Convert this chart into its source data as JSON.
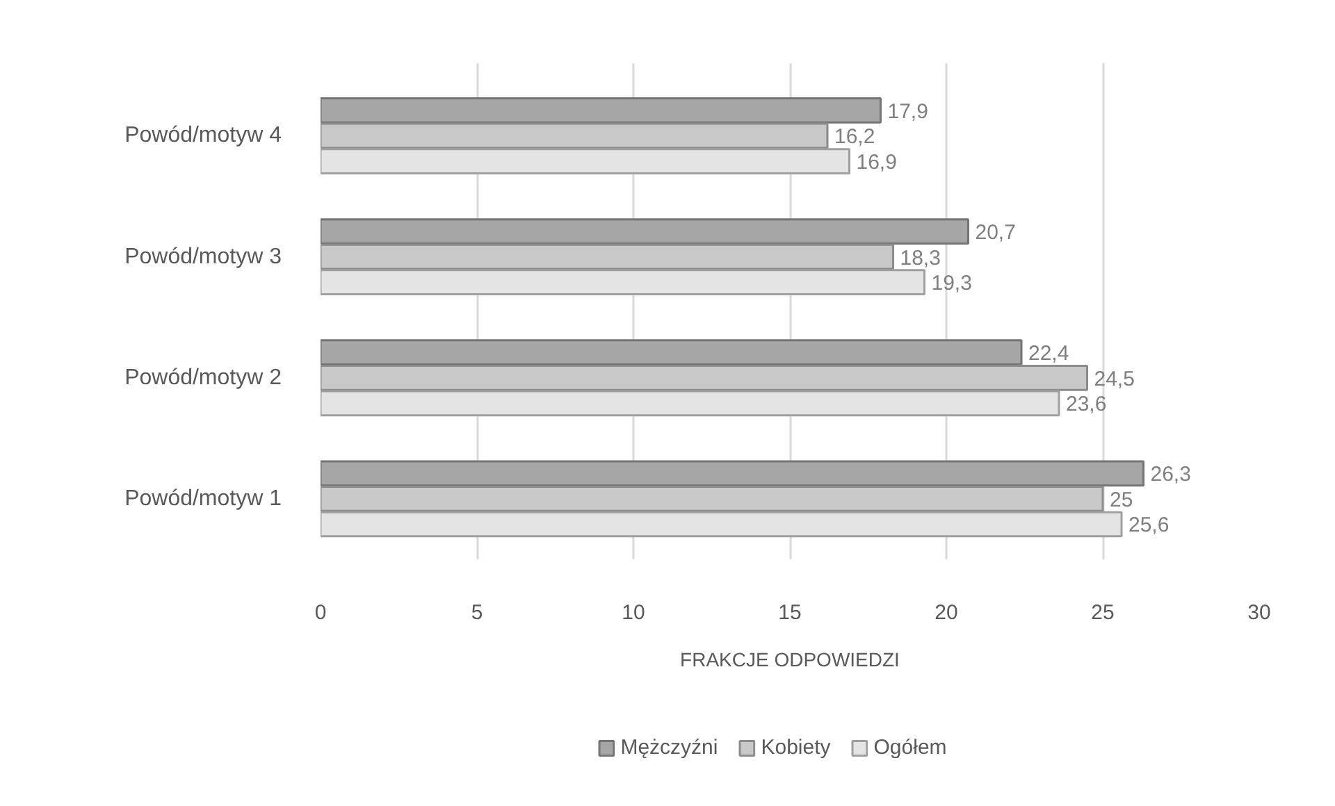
{
  "chart_data": {
    "type": "bar",
    "orientation": "horizontal",
    "categories": [
      "Powód/motyw 4",
      "Powód/motyw 3",
      "Powód/motyw 2",
      "Powód/motyw 1"
    ],
    "series": [
      {
        "name": "Mężczyźni",
        "color": "#a6a6a6",
        "values": [
          17.9,
          20.7,
          22.4,
          26.3
        ],
        "value_labels": [
          "17,9",
          "20,7",
          "22,4",
          "26,3"
        ]
      },
      {
        "name": "Kobiety",
        "color": "#c8c8c8",
        "values": [
          16.2,
          18.3,
          24.5,
          25
        ],
        "value_labels": [
          "16,2",
          "18,3",
          "24,5",
          "25"
        ]
      },
      {
        "name": "Ogółem",
        "color": "#e4e4e4",
        "values": [
          16.9,
          19.3,
          23.6,
          25.6
        ],
        "value_labels": [
          "16,9",
          "19,3",
          "23,6",
          "25,6"
        ]
      }
    ],
    "xlabel": "FRAKCJE ODPOWIEDZI",
    "xlim": [
      0,
      30
    ],
    "xticks": [
      0,
      5,
      10,
      15,
      20,
      25,
      30
    ],
    "grid": "x",
    "legend": "bottom"
  }
}
